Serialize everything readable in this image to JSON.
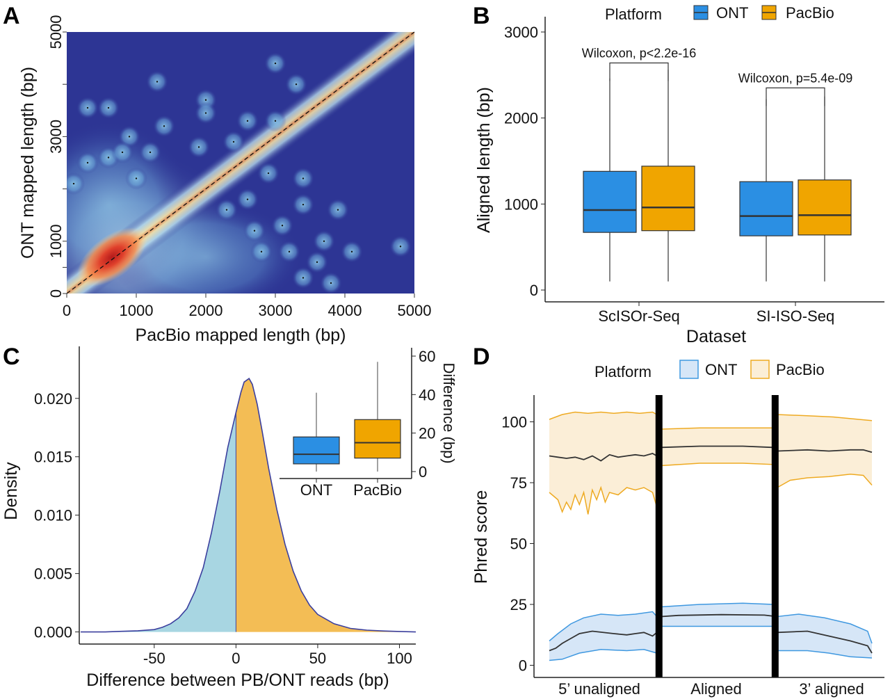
{
  "figure": {
    "panel_labels": [
      "A",
      "B",
      "C",
      "D"
    ]
  },
  "colors": {
    "ont": "#2b8fe3",
    "pacbio": "#f0a500",
    "heat_bg": "#2d3594",
    "density_left": "#a8d6e2",
    "density_right": "#f3bd55",
    "density_line": "#3b3f9e",
    "ribbon_ont_fill": "#d6e6f7",
    "ribbon_ont_line": "#3f98e0",
    "ribbon_pb_fill": "#fbeed7",
    "ribbon_pb_line": "#eeaa22"
  },
  "chart_data": [
    {
      "panel": "A",
      "type": "heatmap",
      "xlabel": "PacBio mapped length (bp)",
      "ylabel": "ONT mapped length (bp)",
      "xlim": [
        0,
        5000
      ],
      "ylim": [
        0,
        5000
      ],
      "x_ticks": [
        "0",
        "1000",
        "2000",
        "3000",
        "4000",
        "5000"
      ],
      "y_ticks": [
        "0",
        "1000",
        "3000",
        "5000"
      ],
      "y_tick_values": [
        0,
        1000,
        3000,
        5000
      ],
      "y_minor_ticks": [
        500,
        2000,
        4000
      ],
      "diagonal": "y = x (dashed)",
      "density_peak": {
        "x": 650,
        "y": 700
      },
      "scattered_points": [
        [
          300,
          3550
        ],
        [
          600,
          3550
        ],
        [
          1300,
          4050
        ],
        [
          3000,
          4400
        ],
        [
          3300,
          4000
        ],
        [
          900,
          3000
        ],
        [
          1400,
          3200
        ],
        [
          2000,
          3700
        ],
        [
          2000,
          3450
        ],
        [
          2600,
          3300
        ],
        [
          3000,
          3300
        ],
        [
          300,
          2500
        ],
        [
          600,
          2600
        ],
        [
          800,
          2700
        ],
        [
          1200,
          2700
        ],
        [
          1900,
          2800
        ],
        [
          2400,
          2900
        ],
        [
          100,
          2100
        ],
        [
          1000,
          2200
        ],
        [
          2900,
          2300
        ],
        [
          3400,
          2200
        ],
        [
          3400,
          1700
        ],
        [
          3900,
          1600
        ],
        [
          3100,
          1300
        ],
        [
          2700,
          1200
        ],
        [
          2300,
          1600
        ],
        [
          3200,
          800
        ],
        [
          3700,
          1000
        ],
        [
          3600,
          600
        ],
        [
          4100,
          800
        ],
        [
          3400,
          300
        ],
        [
          3800,
          200
        ],
        [
          4800,
          900
        ],
        [
          2600,
          1800
        ],
        [
          2800,
          800
        ]
      ]
    },
    {
      "panel": "B",
      "type": "box",
      "xlabel": "Dataset",
      "ylabel": "Aligned length (bp)",
      "ylim": [
        0,
        3000
      ],
      "y_ticks": [
        0,
        1000,
        2000,
        3000
      ],
      "categories": [
        "ScISOr-Seq",
        "SI-ISO-Seq"
      ],
      "legend_title": "Platform",
      "series": [
        {
          "name": "ONT",
          "boxes": [
            {
              "whisker_low": 100,
              "q1": 670,
              "median": 930,
              "q3": 1380,
              "whisker_high": 2460
            },
            {
              "whisker_low": 100,
              "q1": 630,
              "median": 860,
              "q3": 1260,
              "whisker_high": 2220
            }
          ]
        },
        {
          "name": "PacBio",
          "boxes": [
            {
              "whisker_low": 100,
              "q1": 690,
              "median": 960,
              "q3": 1440,
              "whisker_high": 2560
            },
            {
              "whisker_low": 100,
              "q1": 640,
              "median": 870,
              "q3": 1280,
              "whisker_high": 2250
            }
          ]
        }
      ],
      "annotations": [
        {
          "text": "Wilcoxon, p<2.2e-16",
          "category": 0,
          "y": 2640
        },
        {
          "text": "Wilcoxon, p=5.4e-09",
          "category": 1,
          "y": 2350
        }
      ]
    },
    {
      "panel": "C",
      "type": "area",
      "xlabel": "Difference between PB/ONT reads (bp)",
      "ylabel": "Density",
      "xlim": [
        -95,
        110
      ],
      "ylim": [
        -0.0008,
        0.0235
      ],
      "x_ticks": [
        -50,
        0,
        50,
        100
      ],
      "y_ticks": [
        0.0,
        0.005,
        0.01,
        0.015,
        0.02
      ],
      "y_tick_labels": [
        "0.000",
        "0.005",
        "0.010",
        "0.015",
        "0.020"
      ],
      "split_at": 0,
      "x": [
        -95,
        -80,
        -70,
        -60,
        -50,
        -45,
        -40,
        -35,
        -30,
        -25,
        -20,
        -15,
        -10,
        -5,
        0,
        3,
        5,
        8,
        10,
        13,
        16,
        20,
        25,
        30,
        35,
        40,
        45,
        50,
        60,
        70,
        80,
        90,
        100,
        110
      ],
      "y": [
        0.0,
        0.0,
        5e-05,
        0.0001,
        0.0002,
        0.0004,
        0.0007,
        0.0012,
        0.002,
        0.0035,
        0.0055,
        0.0085,
        0.012,
        0.0158,
        0.0188,
        0.0205,
        0.0214,
        0.0217,
        0.0212,
        0.0195,
        0.0172,
        0.014,
        0.0105,
        0.0075,
        0.0052,
        0.0035,
        0.0023,
        0.0015,
        0.0007,
        0.0003,
        0.00015,
        8e-05,
        4e-05,
        0.0
      ],
      "inset": {
        "type": "box",
        "ylabel": "Difference (bp)",
        "ylim": [
          0,
          60
        ],
        "y_ticks": [
          0,
          20,
          40,
          60
        ],
        "categories": [
          "ONT",
          "PacBio"
        ],
        "boxes": [
          {
            "name": "ONT",
            "whisker_low": 0,
            "q1": 4,
            "median": 9,
            "q3": 18,
            "whisker_high": 41
          },
          {
            "name": "PacBio",
            "whisker_low": 0,
            "q1": 7,
            "median": 15,
            "q3": 27,
            "whisker_high": 57
          }
        ]
      }
    },
    {
      "panel": "D",
      "type": "line",
      "ylabel": "Phred score",
      "ylim": [
        -5,
        111
      ],
      "y_ticks": [
        0,
        25,
        50,
        75,
        100
      ],
      "segments": [
        "5’ unaligned",
        "Aligned",
        "3’ aligned"
      ],
      "legend_title": "Platform",
      "series": [
        {
          "name": "ONT",
          "mean": [
            [
              0,
              6
            ],
            [
              1.5,
              7
            ],
            [
              3,
              9
            ],
            [
              5,
              11
            ],
            [
              7,
              13
            ],
            [
              10,
              14
            ],
            [
              15,
              13
            ],
            [
              18,
              12.5
            ],
            [
              20,
              13
            ],
            [
              22,
              13.5
            ],
            [
              24,
              12
            ],
            [
              25,
              13.5
            ],
            [
              26,
              20
            ],
            [
              30,
              20.5
            ],
            [
              40,
              20.8
            ],
            [
              50,
              20.6
            ],
            [
              52,
              20.2
            ],
            [
              53,
              13.5
            ],
            [
              60,
              14
            ],
            [
              65,
              12
            ],
            [
              70,
              10
            ],
            [
              74,
              8
            ],
            [
              75,
              5
            ]
          ],
          "upper": [
            [
              0,
              10
            ],
            [
              2,
              13
            ],
            [
              5,
              17
            ],
            [
              8,
              19.5
            ],
            [
              12,
              21
            ],
            [
              16,
              20.5
            ],
            [
              20,
              21
            ],
            [
              24,
              22
            ],
            [
              25,
              20
            ],
            [
              26,
              24
            ],
            [
              35,
              25
            ],
            [
              45,
              25.5
            ],
            [
              52,
              25
            ],
            [
              53,
              20
            ],
            [
              58,
              21
            ],
            [
              64,
              19.5
            ],
            [
              70,
              17
            ],
            [
              74,
              14
            ],
            [
              75,
              9
            ]
          ],
          "lower": [
            [
              0,
              2
            ],
            [
              3,
              2.5
            ],
            [
              7,
              5
            ],
            [
              12,
              6.5
            ],
            [
              18,
              6
            ],
            [
              22,
              6.5
            ],
            [
              25,
              5
            ],
            [
              26,
              16
            ],
            [
              40,
              16
            ],
            [
              52,
              16
            ],
            [
              53,
              6
            ],
            [
              60,
              6
            ],
            [
              65,
              5
            ],
            [
              70,
              3.5
            ],
            [
              75,
              3
            ]
          ]
        },
        {
          "name": "PacBio",
          "mean": [
            [
              0,
              86
            ],
            [
              2,
              85.5
            ],
            [
              4,
              85
            ],
            [
              6,
              85.5
            ],
            [
              8,
              84.5
            ],
            [
              10,
              86
            ],
            [
              12,
              84
            ],
            [
              14,
              86.5
            ],
            [
              16,
              85.5
            ],
            [
              18,
              86
            ],
            [
              20,
              86.5
            ],
            [
              22,
              86
            ],
            [
              24,
              87
            ],
            [
              25,
              86
            ],
            [
              26,
              89.5
            ],
            [
              35,
              90
            ],
            [
              45,
              90
            ],
            [
              52,
              89.5
            ],
            [
              53,
              88
            ],
            [
              60,
              88.5
            ],
            [
              65,
              88
            ],
            [
              70,
              88.5
            ],
            [
              73,
              88.5
            ],
            [
              75,
              87.5
            ]
          ],
          "upper": [
            [
              0,
              101
            ],
            [
              3,
              103
            ],
            [
              6,
              104
            ],
            [
              9,
              103.5
            ],
            [
              12,
              104
            ],
            [
              15,
              103.5
            ],
            [
              18,
              104
            ],
            [
              21,
              103.5
            ],
            [
              24,
              104
            ],
            [
              25,
              103
            ],
            [
              26,
              97
            ],
            [
              35,
              97.5
            ],
            [
              45,
              97.5
            ],
            [
              52,
              97.5
            ],
            [
              53,
              103
            ],
            [
              60,
              102.5
            ],
            [
              66,
              102
            ],
            [
              72,
              101
            ],
            [
              75,
              100.5
            ]
          ],
          "lower": [
            [
              0,
              71
            ],
            [
              2,
              68
            ],
            [
              3,
              63
            ],
            [
              4,
              67
            ],
            [
              5,
              64
            ],
            [
              6,
              70
            ],
            [
              7,
              66
            ],
            [
              8,
              71
            ],
            [
              9,
              62
            ],
            [
              10,
              72
            ],
            [
              11,
              68
            ],
            [
              12,
              73
            ],
            [
              13,
              67
            ],
            [
              14,
              71
            ],
            [
              16,
              70
            ],
            [
              18,
              73
            ],
            [
              20,
              72
            ],
            [
              22,
              73
            ],
            [
              24,
              71
            ],
            [
              25,
              65
            ],
            [
              26,
              82
            ],
            [
              35,
              83
            ],
            [
              45,
              83
            ],
            [
              52,
              82.5
            ],
            [
              53,
              73
            ],
            [
              56,
              76
            ],
            [
              60,
              77
            ],
            [
              65,
              77.5
            ],
            [
              70,
              78.5
            ],
            [
              73,
              78
            ],
            [
              75,
              74
            ]
          ]
        }
      ]
    }
  ]
}
